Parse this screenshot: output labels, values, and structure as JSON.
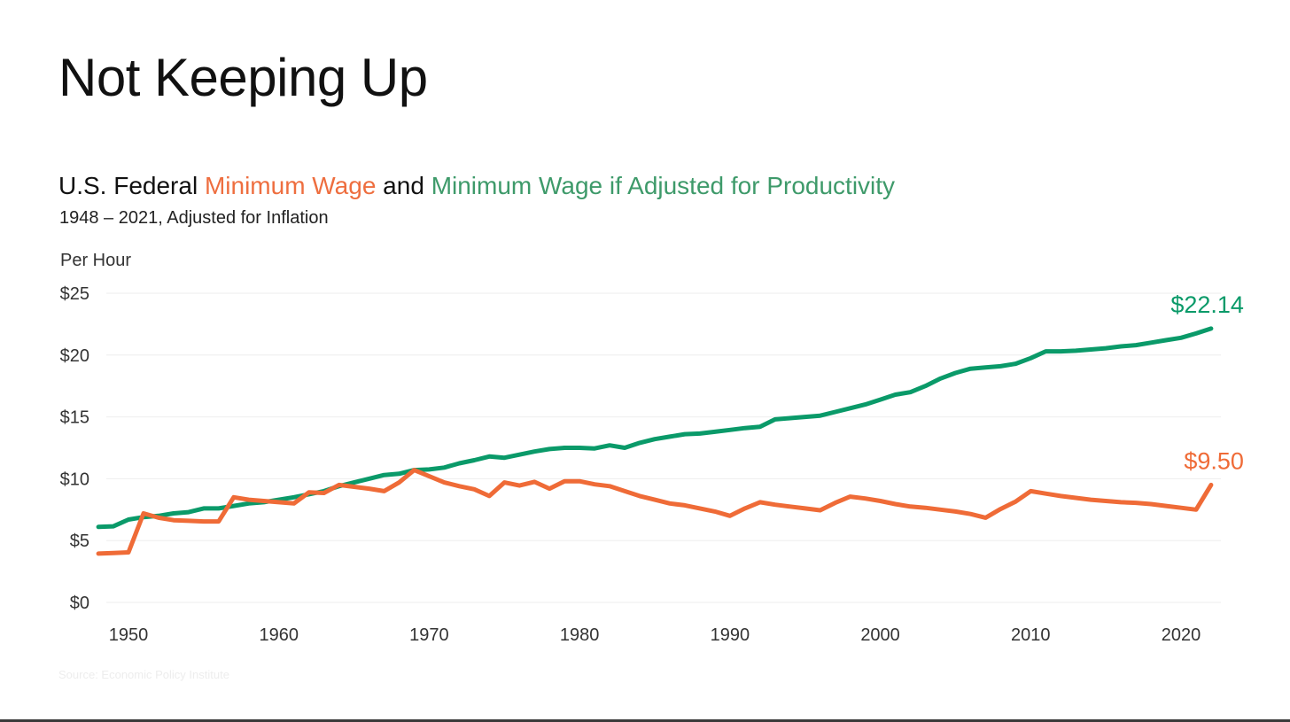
{
  "header": {
    "title": "Not Keeping Up",
    "subtitle_prefix": "U.S. Federal ",
    "subtitle_series1": "Minimum Wage",
    "subtitle_mid": " and ",
    "subtitle_series2": "Minimum Wage if Adjusted for Productivity",
    "date_range": "1948 – 2021, Adjusted for Inflation",
    "source": "Source: Economic Policy Institute"
  },
  "colors": {
    "min_wage": "#ef6b37",
    "productivity": "#0a9a69",
    "grid": "#eeeeee"
  },
  "chart_data": {
    "type": "line",
    "title": "Not Keeping Up",
    "ylabel": "Per Hour",
    "xlabel": "",
    "xlim": [
      1948,
      2022
    ],
    "ylim": [
      0,
      25
    ],
    "x_ticks": [
      1950,
      1960,
      1970,
      1980,
      1990,
      2000,
      2010,
      2020
    ],
    "x_tick_labels": [
      "1950",
      "1960",
      "1970",
      "1980",
      "1990",
      "2000",
      "2010",
      "2020"
    ],
    "y_ticks": [
      0,
      5,
      10,
      15,
      20,
      25
    ],
    "y_tick_labels": [
      "$0",
      "$5",
      "$10",
      "$15",
      "$20",
      "$25"
    ],
    "grid": true,
    "legend": "none (series named in subtitle)",
    "series": [
      {
        "name": "Minimum Wage if Adjusted for Productivity",
        "color_key": "productivity",
        "end_label": "$22.14",
        "x": [
          1948,
          1949,
          1950,
          1951,
          1952,
          1953,
          1954,
          1955,
          1956,
          1957,
          1958,
          1959,
          1960,
          1961,
          1962,
          1963,
          1964,
          1965,
          1966,
          1967,
          1968,
          1969,
          1970,
          1971,
          1972,
          1973,
          1974,
          1975,
          1976,
          1977,
          1978,
          1979,
          1980,
          1981,
          1982,
          1983,
          1984,
          1985,
          1986,
          1987,
          1988,
          1989,
          1990,
          1991,
          1992,
          1993,
          1994,
          1995,
          1996,
          1997,
          1998,
          1999,
          2000,
          2001,
          2002,
          2003,
          2004,
          2005,
          2006,
          2007,
          2008,
          2009,
          2010,
          2011,
          2012,
          2013,
          2014,
          2015,
          2016,
          2017,
          2018,
          2019,
          2020,
          2021,
          2022
        ],
        "values": [
          6.1,
          6.15,
          6.7,
          6.9,
          7.0,
          7.2,
          7.3,
          7.6,
          7.6,
          7.8,
          8.0,
          8.1,
          8.3,
          8.5,
          8.75,
          9.0,
          9.4,
          9.7,
          10.0,
          10.3,
          10.4,
          10.7,
          10.75,
          10.9,
          11.25,
          11.5,
          11.8,
          11.7,
          11.95,
          12.2,
          12.4,
          12.5,
          12.5,
          12.45,
          12.7,
          12.5,
          12.9,
          13.2,
          13.4,
          13.6,
          13.65,
          13.8,
          13.95,
          14.1,
          14.2,
          14.8,
          14.9,
          15.0,
          15.1,
          15.4,
          15.7,
          16.0,
          16.4,
          16.8,
          17.0,
          17.5,
          18.1,
          18.55,
          18.9,
          19.0,
          19.1,
          19.3,
          19.75,
          20.3,
          20.3,
          20.35,
          20.45,
          20.55,
          20.7,
          20.8,
          21.0,
          21.2,
          21.4,
          21.75,
          22.14
        ]
      },
      {
        "name": "Minimum Wage",
        "color_key": "min_wage",
        "end_label": "$9.50",
        "x": [
          1948,
          1949,
          1950,
          1951,
          1952,
          1953,
          1954,
          1955,
          1956,
          1957,
          1958,
          1959,
          1960,
          1961,
          1962,
          1963,
          1964,
          1965,
          1966,
          1967,
          1968,
          1969,
          1970,
          1971,
          1972,
          1973,
          1974,
          1975,
          1976,
          1977,
          1978,
          1979,
          1980,
          1981,
          1982,
          1983,
          1984,
          1985,
          1986,
          1987,
          1988,
          1989,
          1990,
          1991,
          1992,
          1993,
          1994,
          1995,
          1996,
          1997,
          1998,
          1999,
          2000,
          2001,
          2002,
          2003,
          2004,
          2005,
          2006,
          2007,
          2008,
          2009,
          2010,
          2011,
          2012,
          2013,
          2014,
          2015,
          2016,
          2017,
          2018,
          2019,
          2020,
          2021,
          2022
        ],
        "values": [
          3.95,
          4.0,
          4.05,
          7.2,
          6.85,
          6.65,
          6.6,
          6.55,
          6.55,
          8.5,
          8.3,
          8.2,
          8.1,
          8.0,
          8.9,
          8.85,
          9.5,
          9.35,
          9.2,
          9.0,
          9.7,
          10.7,
          10.2,
          9.7,
          9.4,
          9.15,
          8.6,
          9.7,
          9.45,
          9.75,
          9.2,
          9.8,
          9.8,
          9.55,
          9.4,
          9.0,
          8.6,
          8.3,
          8.0,
          7.85,
          7.6,
          7.35,
          7.0,
          7.6,
          8.1,
          7.9,
          7.75,
          7.6,
          7.45,
          8.05,
          8.55,
          8.4,
          8.2,
          7.95,
          7.75,
          7.65,
          7.5,
          7.35,
          7.15,
          6.85,
          7.55,
          8.15,
          9.0,
          8.8,
          8.6,
          8.45,
          8.3,
          8.2,
          8.1,
          8.05,
          7.95,
          7.8,
          7.65,
          7.5,
          9.5
        ]
      }
    ]
  }
}
